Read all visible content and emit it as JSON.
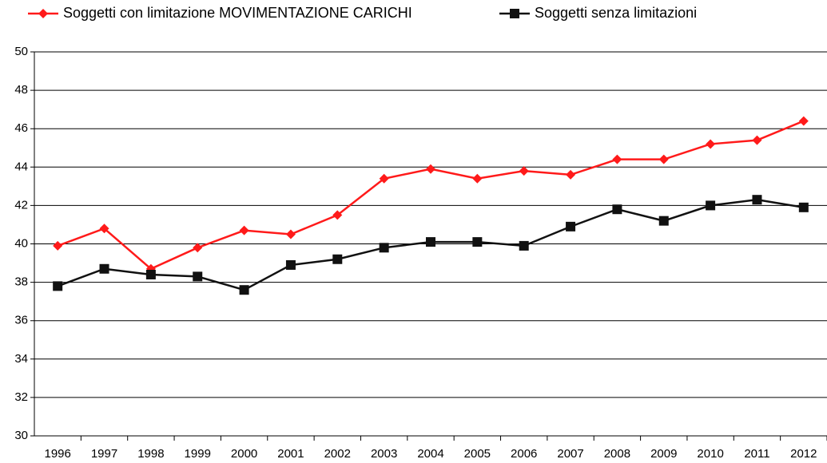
{
  "chart_data": {
    "type": "line",
    "categories": [
      "1996",
      "1997",
      "1998",
      "1999",
      "2000",
      "2001",
      "2002",
      "2003",
      "2004",
      "2005",
      "2006",
      "2007",
      "2008",
      "2009",
      "2010",
      "2011",
      "2012"
    ],
    "series": [
      {
        "name": "Soggetti con limitazione MOVIMENTAZIONE CARICHI",
        "color": "#ff1a1a",
        "marker": "diamond",
        "values": [
          39.9,
          40.8,
          38.7,
          39.8,
          40.7,
          40.5,
          41.5,
          43.4,
          43.9,
          43.4,
          43.8,
          43.6,
          44.4,
          44.4,
          45.2,
          45.4,
          46.4
        ]
      },
      {
        "name": "Soggetti senza limitazioni",
        "color": "#111111",
        "marker": "square",
        "values": [
          37.8,
          38.7,
          38.4,
          38.3,
          37.6,
          38.9,
          39.2,
          39.8,
          40.1,
          40.1,
          39.9,
          40.9,
          41.8,
          41.2,
          42.0,
          42.3,
          41.9
        ]
      }
    ],
    "ylim": [
      30,
      50
    ],
    "yticks": [
      30,
      32,
      34,
      36,
      38,
      40,
      42,
      44,
      46,
      48,
      50
    ],
    "grid": true,
    "legend": "top"
  }
}
